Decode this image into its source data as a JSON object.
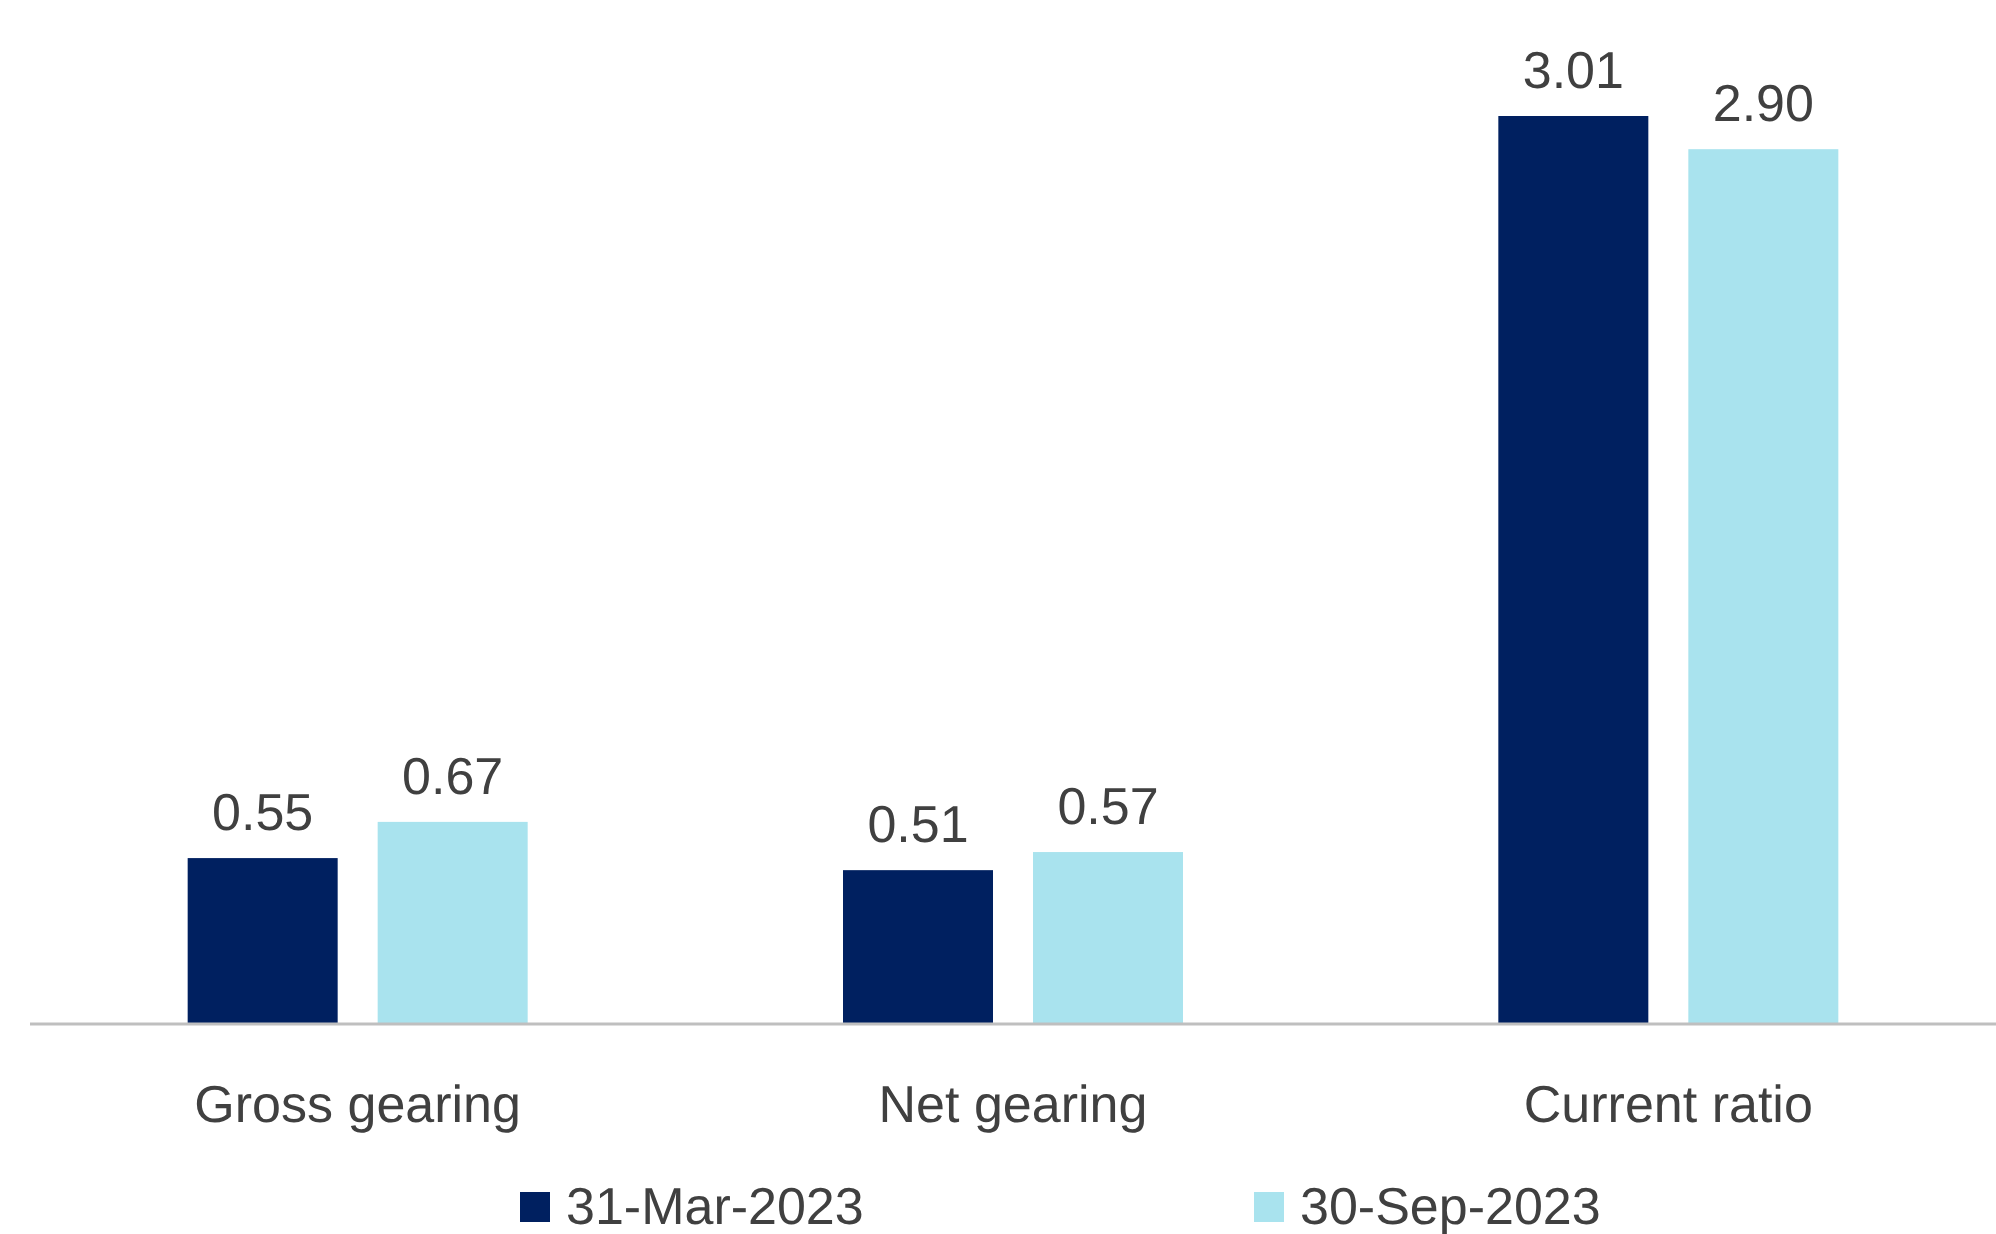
{
  "chart_data": {
    "type": "bar",
    "categories": [
      "Gross gearing",
      "Net gearing",
      "Current ratio"
    ],
    "series": [
      {
        "name": "31-Mar-2023",
        "color": "#002060",
        "values": [
          0.55,
          0.51,
          3.01
        ],
        "value_labels": [
          "0.55",
          "0.51",
          "3.01"
        ]
      },
      {
        "name": "30-Sep-2023",
        "color": "#a9e3ee",
        "values": [
          0.67,
          0.57,
          2.9
        ],
        "value_labels": [
          "0.67",
          "0.57",
          "2.90"
        ]
      }
    ],
    "legend": "bottom"
  }
}
